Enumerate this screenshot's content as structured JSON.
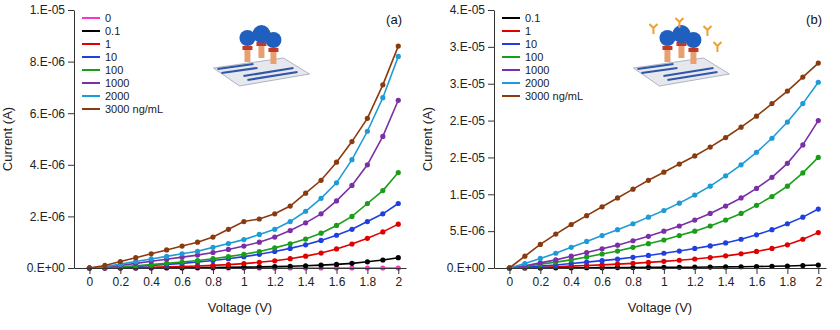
{
  "chart_data": [
    {
      "type": "line",
      "title": "(a)",
      "x_label": "Voltage (V)",
      "y_label": "Current (A)",
      "x": [
        0,
        0.1,
        0.2,
        0.3,
        0.4,
        0.5,
        0.6,
        0.7,
        0.8,
        0.9,
        1,
        1.1,
        1.2,
        1.3,
        1.4,
        1.5,
        1.6,
        1.7,
        1.8,
        1.9,
        2
      ],
      "xlim": [
        -0.1,
        2.05
      ],
      "xticks": [
        0,
        0.2,
        0.4,
        0.6,
        0.8,
        1,
        1.2,
        1.4,
        1.6,
        1.8,
        2
      ],
      "ylim": [
        0,
        1e-05
      ],
      "yticks": [
        {
          "value": 0,
          "label": "0.E+00"
        },
        {
          "value": 2e-06,
          "label": "2.E-06"
        },
        {
          "value": 4e-06,
          "label": "4.E-06"
        },
        {
          "value": 6e-06,
          "label": "6.E-06"
        },
        {
          "value": 8e-06,
          "label": "8.E-06"
        },
        {
          "value": 1e-05,
          "label": "1.E-05"
        }
      ],
      "grid": false,
      "legend": "upper left",
      "marker": "circle",
      "line_style": "solid",
      "series": [
        {
          "name": "0",
          "color": "#ff33cc",
          "values": [
            0,
            0,
            0,
            0,
            0,
            0,
            0,
            0,
            0,
            0,
            0,
            0,
            0,
            0,
            0,
            0,
            0,
            0,
            0,
            0,
            0
          ]
        },
        {
          "name": "0.1",
          "color": "#000000",
          "values": [
            0,
            0,
            2e-09,
            4e-09,
            6e-09,
            9e-09,
            1.2e-08,
            1.6e-08,
            2e-08,
            2.6e-08,
            3.3e-08,
            4.2e-08,
            5.3e-08,
            6.7e-08,
            8.5e-08,
            1.1e-07,
            1.4e-07,
            1.8e-07,
            2.4e-07,
            3.1e-07,
            4e-07
          ]
        },
        {
          "name": "1",
          "color": "#e00000",
          "values": [
            0,
            5e-09,
            1e-08,
            2e-08,
            3e-08,
            4.5e-08,
            6e-08,
            8e-08,
            1e-07,
            1.3e-07,
            1.7e-07,
            2.2e-07,
            2.8e-07,
            3.6e-07,
            4.6e-07,
            5.8e-07,
            7.4e-07,
            9.3e-07,
            1.15e-06,
            1.4e-06,
            1.7e-06
          ]
        },
        {
          "name": "10",
          "color": "#1f3fe0",
          "values": [
            0,
            1e-08,
            3e-08,
            6e-08,
            1e-07,
            1.4e-07,
            1.8e-07,
            2.3e-07,
            2.9e-07,
            3.6e-07,
            4.4e-07,
            5.3e-07,
            6.4e-07,
            7.6e-07,
            9e-07,
            1.07e-06,
            1.27e-06,
            1.5e-06,
            1.8e-06,
            2.1e-06,
            2.5e-06
          ]
        },
        {
          "name": "100",
          "color": "#1a9e1a",
          "values": [
            0,
            2e-08,
            5e-08,
            9e-08,
            1.3e-07,
            1.8e-07,
            2.3e-07,
            2.9e-07,
            3.6e-07,
            4.4e-07,
            5.3e-07,
            6.4e-07,
            7.8e-07,
            9.4e-07,
            1.12e-06,
            1.35e-06,
            1.65e-06,
            2e-06,
            2.5e-06,
            3e-06,
            3.7e-06
          ]
        },
        {
          "name": "1000",
          "color": "#7a2fa8",
          "values": [
            0,
            4e-08,
            1e-07,
            1.8e-07,
            2.6e-07,
            3.4e-07,
            4.2e-07,
            5e-07,
            6e-07,
            7.2e-07,
            8.5e-07,
            1e-06,
            1.2e-06,
            1.45e-06,
            1.75e-06,
            2.1e-06,
            2.6e-06,
            3.2e-06,
            4e-06,
            5.1e-06,
            6.5e-06
          ]
        },
        {
          "name": "2000",
          "color": "#1e9bd7",
          "values": [
            0,
            5e-08,
            1.5e-07,
            2.5e-07,
            3.5e-07,
            4.5e-07,
            5.5e-07,
            6.5e-07,
            8e-07,
            9.5e-07,
            1.1e-06,
            1.3e-06,
            1.5e-06,
            1.8e-06,
            2.2e-06,
            2.7e-06,
            3.3e-06,
            4.2e-06,
            5.3e-06,
            6.6e-06,
            8.2e-06
          ]
        },
        {
          "name": "3000 ng/mL",
          "color": "#8b3a0f",
          "values": [
            0,
            1e-07,
            2.5e-07,
            4e-07,
            5.5e-07,
            7e-07,
            8.5e-07,
            1e-06,
            1.2e-06,
            1.5e-06,
            1.8e-06,
            1.9e-06,
            2.1e-06,
            2.4e-06,
            2.9e-06,
            3.4e-06,
            4.1e-06,
            4.9e-06,
            5.8e-06,
            7.1e-06,
            8.6e-06
          ]
        }
      ]
    },
    {
      "type": "line",
      "title": "(b)",
      "x_label": "Voltage (V)",
      "y_label": "Current (A)",
      "x": [
        0,
        0.1,
        0.2,
        0.3,
        0.4,
        0.5,
        0.6,
        0.7,
        0.8,
        0.9,
        1,
        1.1,
        1.2,
        1.3,
        1.4,
        1.5,
        1.6,
        1.7,
        1.8,
        1.9,
        2
      ],
      "xlim": [
        -0.1,
        2.05
      ],
      "xticks": [
        0,
        0.2,
        0.4,
        0.6,
        0.8,
        1,
        1.2,
        1.4,
        1.6,
        1.8,
        2
      ],
      "ylim": [
        0,
        3.5e-05
      ],
      "yticks": [
        {
          "value": 0,
          "label": "0.E+00"
        },
        {
          "value": 5e-06,
          "label": "5.E-06"
        },
        {
          "value": 1e-05,
          "label": "1.E-05"
        },
        {
          "value": 1.5e-05,
          "label": "2.E-05"
        },
        {
          "value": 2e-05,
          "label": "2.E-05"
        },
        {
          "value": 2.5e-05,
          "label": "3.E-05"
        },
        {
          "value": 3e-05,
          "label": "3.E-05"
        },
        {
          "value": 3.5e-05,
          "label": "4.E-05"
        }
      ],
      "grid": false,
      "legend": "upper left",
      "marker": "circle",
      "line_style": "solid",
      "series": [
        {
          "name": "0.1",
          "color": "#000000",
          "values": [
            0,
            5e-09,
            1e-08,
            2e-08,
            3e-08,
            4e-08,
            5e-08,
            6e-08,
            7e-08,
            8e-08,
            9e-08,
            1e-07,
            1.1e-07,
            1.3e-07,
            1.5e-07,
            1.7e-07,
            2e-07,
            2.3e-07,
            2.7e-07,
            3.3e-07,
            4e-07
          ]
        },
        {
          "name": "1",
          "color": "#e00000",
          "values": [
            0,
            5e-08,
            1e-07,
            1.7e-07,
            2.5e-07,
            3.3e-07,
            4.2e-07,
            5.2e-07,
            6.3e-07,
            7.6e-07,
            9e-07,
            1.05e-06,
            1.22e-06,
            1.42e-06,
            1.65e-06,
            1.92e-06,
            2.25e-06,
            2.65e-06,
            3.15e-06,
            3.9e-06,
            4.8e-06
          ]
        },
        {
          "name": "10",
          "color": "#1f3fe0",
          "values": [
            0,
            1e-07,
            2.5e-07,
            4e-07,
            6e-07,
            8e-07,
            1e-06,
            1.2e-06,
            1.45e-06,
            1.7e-06,
            2e-06,
            2.3e-06,
            2.65e-06,
            3e-06,
            3.4e-06,
            3.9e-06,
            4.5e-06,
            5.2e-06,
            6e-06,
            6.9e-06,
            8e-06
          ]
        },
        {
          "name": "100",
          "color": "#1a9e1a",
          "values": [
            0,
            2e-07,
            5e-07,
            8e-07,
            1.1e-06,
            1.5e-06,
            1.9e-06,
            2.3e-06,
            2.8e-06,
            3.3e-06,
            3.8e-06,
            4.4e-06,
            5e-06,
            5.7e-06,
            6.5e-06,
            7.4e-06,
            8.5e-06,
            9.7e-06,
            1.11e-05,
            1.29e-05,
            1.5e-05
          ]
        },
        {
          "name": "1000",
          "color": "#7a2fa8",
          "values": [
            0,
            3e-07,
            7e-07,
            1.1e-06,
            1.6e-06,
            2.1e-06,
            2.6e-06,
            3.1e-06,
            3.7e-06,
            4.3e-06,
            5e-06,
            5.7e-06,
            6.5e-06,
            7.4e-06,
            8.4e-06,
            9.5e-06,
            1.08e-05,
            1.23e-05,
            1.42e-05,
            1.67e-05,
            2e-05
          ]
        },
        {
          "name": "2000",
          "color": "#1e9bd7",
          "values": [
            0,
            6e-07,
            1.3e-06,
            2e-06,
            2.8e-06,
            3.6e-06,
            4.4e-06,
            5.2e-06,
            6e-06,
            6.9e-06,
            7.8e-06,
            8.8e-06,
            9.9e-06,
            1.11e-05,
            1.25e-05,
            1.4e-05,
            1.57e-05,
            1.76e-05,
            1.98e-05,
            2.23e-05,
            2.52e-05
          ]
        },
        {
          "name": "3000 ng/mL",
          "color": "#8b3a0f",
          "values": [
            0,
            1.6e-06,
            3.2e-06,
            4.6e-06,
            5.9e-06,
            7.1e-06,
            8.3e-06,
            9.5e-06,
            1.07e-05,
            1.19e-05,
            1.3e-05,
            1.41e-05,
            1.52e-05,
            1.64e-05,
            1.77e-05,
            1.91e-05,
            2.06e-05,
            2.23e-05,
            2.4e-05,
            2.59e-05,
            2.78e-05
          ]
        }
      ]
    }
  ]
}
